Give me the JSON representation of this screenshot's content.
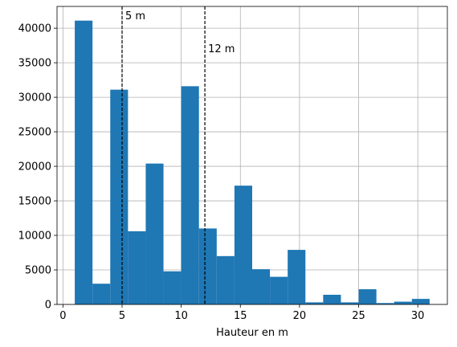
{
  "chart_data": {
    "type": "bar",
    "histogram": true,
    "bin_edges": [
      1,
      2.5,
      4,
      5.5,
      7,
      8.5,
      10,
      11.5,
      13,
      14.5,
      16,
      17.5,
      19,
      20.5,
      22,
      23.5,
      25,
      26.5,
      28,
      29.5,
      31
    ],
    "values": [
      41100,
      3000,
      31100,
      10600,
      20400,
      4800,
      31600,
      11000,
      7000,
      17200,
      5100,
      4000,
      7900,
      300,
      1400,
      300,
      2200,
      200,
      400,
      800
    ],
    "color": "#1f77b4",
    "xlabel": "Hauteur en m",
    "ylabel": "",
    "title": "",
    "xlim": [
      -0.5,
      32.5
    ],
    "ylim": [
      0,
      43155
    ],
    "x_ticks": [
      0,
      5,
      10,
      15,
      20,
      25,
      30
    ],
    "y_ticks": [
      0,
      5000,
      10000,
      15000,
      20000,
      25000,
      30000,
      35000,
      40000
    ],
    "grid": true,
    "vlines": [
      {
        "x": 5,
        "label": "5 m",
        "style": "dashed",
        "color": "#000000"
      },
      {
        "x": 12,
        "label": "12 m",
        "style": "dashed",
        "color": "#000000"
      }
    ]
  }
}
